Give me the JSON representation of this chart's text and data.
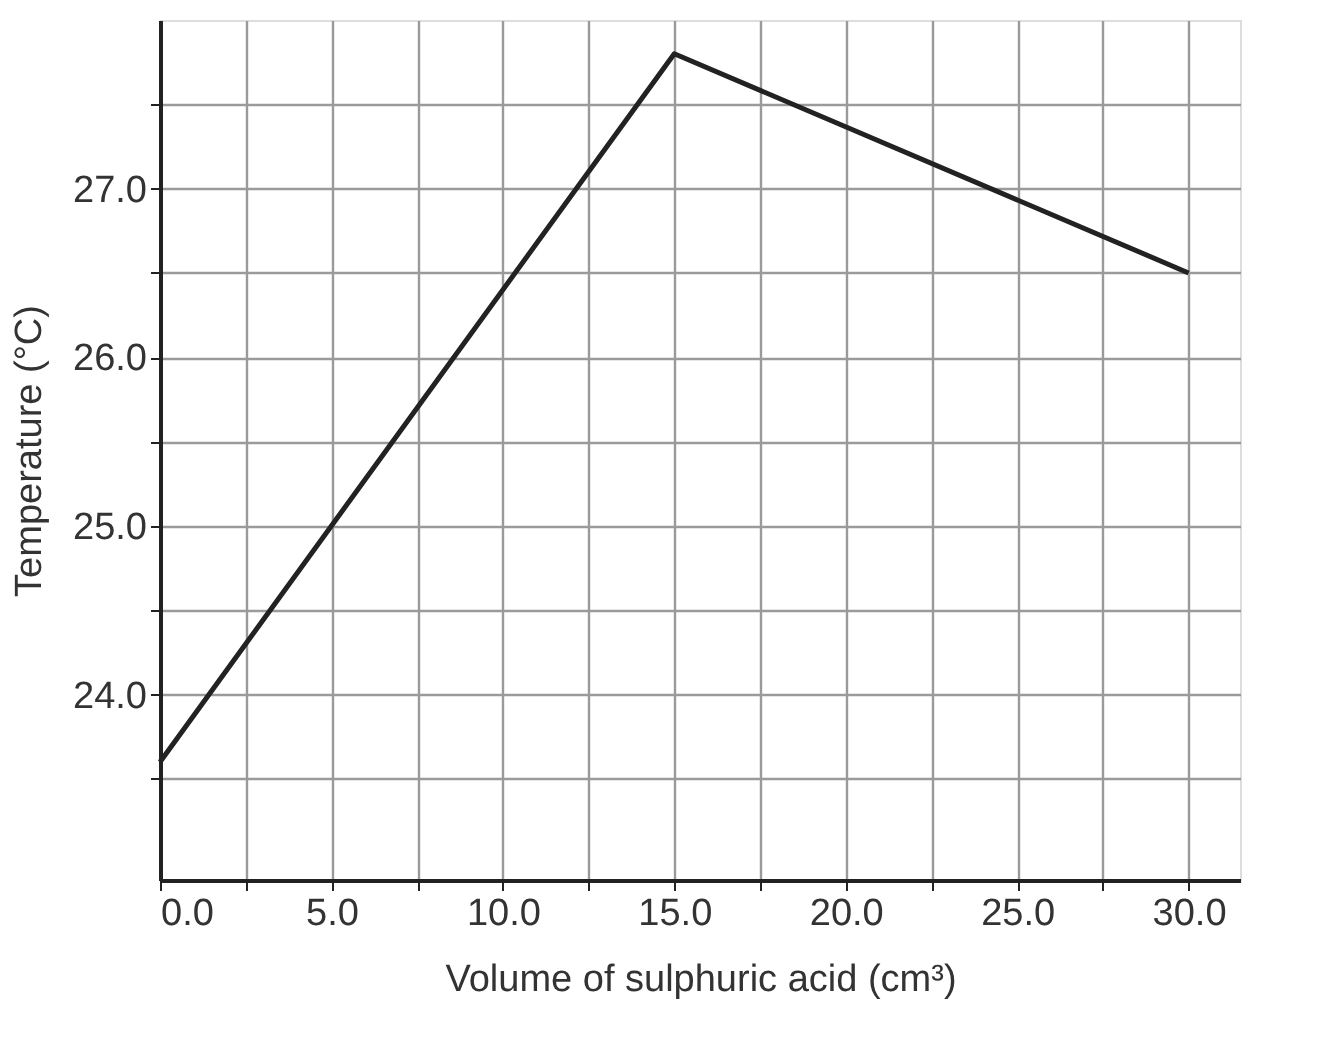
{
  "chart_data": {
    "type": "line",
    "xlabel": "Volume of sulphuric acid (cm³)",
    "ylabel": "Temperature (°C)",
    "x": [
      0,
      15,
      30
    ],
    "series": [
      {
        "color": "#222222",
        "values": [
          23.6,
          27.8,
          26.5
        ]
      }
    ],
    "xlim": [
      0,
      31.5
    ],
    "ylim": [
      22.9,
      28.0
    ],
    "xticks": [
      {
        "value": 0,
        "label": "0.0"
      },
      {
        "value": 2.5,
        "label": null
      },
      {
        "value": 5,
        "label": "5.0"
      },
      {
        "value": 7.5,
        "label": null
      },
      {
        "value": 10,
        "label": "10.0"
      },
      {
        "value": 12.5,
        "label": null
      },
      {
        "value": 15,
        "label": "15.0"
      },
      {
        "value": 17.5,
        "label": null
      },
      {
        "value": 20,
        "label": "20.0"
      },
      {
        "value": 22.5,
        "label": null
      },
      {
        "value": 25,
        "label": "25.0"
      },
      {
        "value": 27.5,
        "label": null
      },
      {
        "value": 30,
        "label": "30.0"
      }
    ],
    "yticks": [
      {
        "value": 23.5,
        "label": null
      },
      {
        "value": 24,
        "label": "24.0"
      },
      {
        "value": 24.5,
        "label": null
      },
      {
        "value": 25,
        "label": "25.0"
      },
      {
        "value": 25.5,
        "label": null
      },
      {
        "value": 26,
        "label": "26.0"
      },
      {
        "value": 26.5,
        "label": null
      },
      {
        "value": 27,
        "label": "27.0"
      },
      {
        "value": 27.5,
        "label": null
      }
    ],
    "grid": true,
    "legend": false,
    "marker": "none",
    "line_style": "solid"
  }
}
